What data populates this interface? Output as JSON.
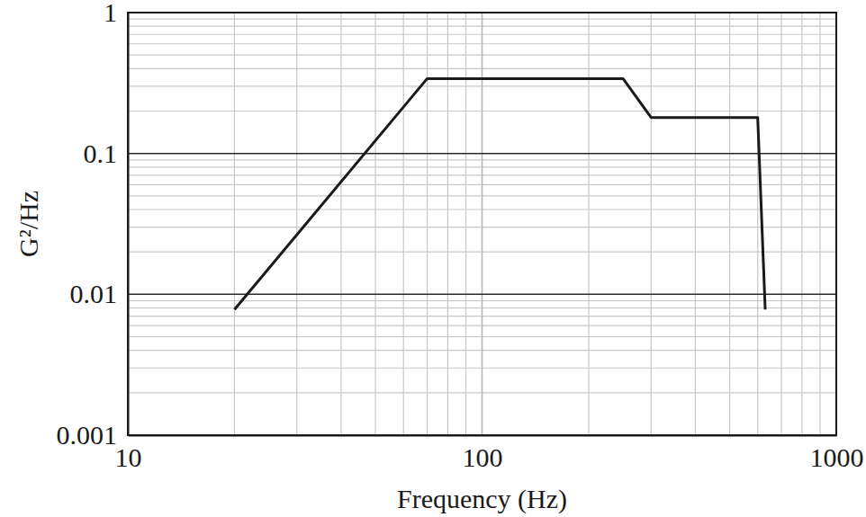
{
  "chart_data": {
    "type": "line",
    "x_label": "Frequency (Hz)",
    "y_label": "G²/Hz",
    "x": [
      20,
      70,
      250,
      300,
      600,
      630
    ],
    "values": [
      0.0078,
      0.34,
      0.34,
      0.18,
      0.18,
      0.0078
    ],
    "color": "#1a1a1a",
    "log": true,
    "grid": true,
    "xlim": [
      10,
      1000
    ],
    "ylim": [
      0.001,
      1
    ],
    "xticks": [
      10,
      100,
      1000
    ],
    "yticks": [
      0.001,
      0.01,
      0.1,
      1
    ]
  }
}
